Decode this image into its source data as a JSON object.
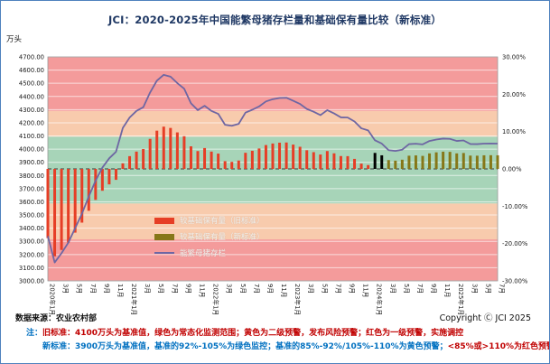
{
  "title": "JCI：2020-2025年中国能繁母猪存栏量和基础保有量比较（新标准）",
  "footer": {
    "source": "数据来源：农业农村部",
    "copyright": "Copyright Ⓒ JCI 2025"
  },
  "notes": {
    "line1": [
      {
        "text": "注：",
        "color": "#0070C0"
      },
      {
        "text": "旧标准：4100万头为基准值，绿色为常态化监测范围；黄色为二级预警，发布风险预警；红色为一级预警，实施调控",
        "color": "#C00000"
      }
    ],
    "line2": [
      {
        "text": "新标准：3900万头为基准值，基准的92%-105%为绿色监控；基准的85%-92%/105%-110%为黄色预警；",
        "color": "#0070C0"
      },
      {
        "text": "<85%或>110%为红色预警",
        "color": "#C00000"
      }
    ]
  },
  "chart_data": {
    "type": "combo-bar-line",
    "title": "JCI：2020-2025年中国能繁母猪存栏量和基础保有量比较（新标准）",
    "y_left": {
      "unit": "万头",
      "min": 3000,
      "max": 4700,
      "step": 100
    },
    "y_right": {
      "unit": "%",
      "min": -30,
      "max": 30,
      "step": 10
    },
    "x": {
      "start": "2020年1月",
      "end": "2025年7月",
      "tick_labels": [
        "2020年1月",
        "3月",
        "5月",
        "7月",
        "9月",
        "11月",
        "2021年1月",
        "3月",
        "5月",
        "7月",
        "9月",
        "11月",
        "2022年1月",
        "3月",
        "5月",
        "7月",
        "9月",
        "11月",
        "2023年1月",
        "3月",
        "5月",
        "7月",
        "9月",
        "11月",
        "2024年1月",
        "3月",
        "5月",
        "7月",
        "9月",
        "11月",
        "2025年1月",
        "3月",
        "5月",
        "7月"
      ]
    },
    "zones": [
      {
        "from": 3000,
        "to": 3315,
        "color": "#F49B9B",
        "meaning": "红色预警"
      },
      {
        "from": 3315,
        "to": 3588,
        "color": "#F8CBAD",
        "meaning": "黄色预警"
      },
      {
        "from": 3588,
        "to": 4095,
        "color": "#A7D4B8",
        "meaning": "绿色监控"
      },
      {
        "from": 4095,
        "to": 4290,
        "color": "#F8CBAD",
        "meaning": "黄色预警"
      },
      {
        "from": 4290,
        "to": 4700,
        "color": "#F49B9B",
        "meaning": "红色预警"
      }
    ],
    "series": [
      {
        "name": "较基础保有量（旧标准）",
        "type": "bar",
        "axis": "right",
        "color": "#E63E26",
        "base": 4100,
        "start_index": 0,
        "end_index": 47
      },
      {
        "name": "较基础保有量（新标准）",
        "type": "bar",
        "axis": "right",
        "color": "#867718",
        "base": 3900,
        "start_index": 50,
        "end_index": 66
      },
      {
        "name": "能繁母猪存栏",
        "type": "line",
        "axis": "left",
        "color": "#6E66A3",
        "values": [
          3340,
          3140,
          3210,
          3290,
          3400,
          3510,
          3640,
          3760,
          3860,
          3930,
          3980,
          4161,
          4240,
          4290,
          4318,
          4430,
          4520,
          4564,
          4550,
          4501,
          4459,
          4348,
          4296,
          4329,
          4290,
          4268,
          4185,
          4177,
          4192,
          4277,
          4299,
          4324,
          4362,
          4379,
          4388,
          4390,
          4367,
          4343,
          4305,
          4284,
          4258,
          4296,
          4271,
          4241,
          4240,
          4210,
          4158,
          4142,
          4067,
          4042,
          3992,
          3986,
          3996,
          4038,
          4041,
          4036,
          4062,
          4073,
          4080,
          4078,
          4062,
          4066,
          4039,
          4038,
          4042,
          4043,
          4042
        ]
      }
    ],
    "transition_marker": {
      "indices": [
        48,
        49
      ],
      "color": "#000000",
      "base": 3900
    },
    "zero_line": {
      "value": 0,
      "style": "dashed",
      "color": "#3a3a3a"
    },
    "grid": "horizontal-white"
  }
}
